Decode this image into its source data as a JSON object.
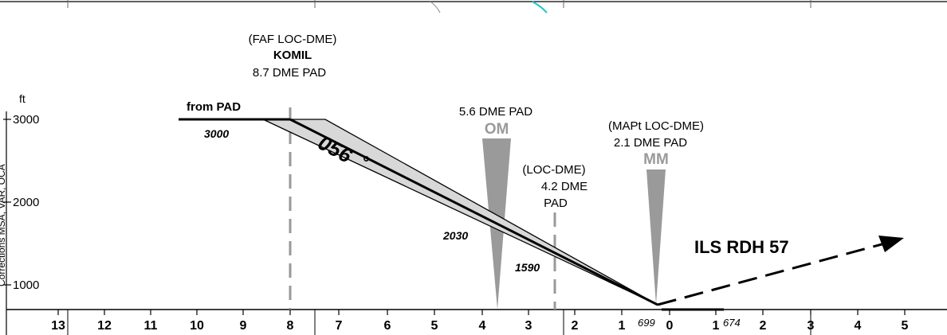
{
  "profile": {
    "unit_label": "ft",
    "altitude_scale": [
      "3000",
      "2000",
      "1000"
    ],
    "side_label": "Corrections MSA, VAR, OCA",
    "distance_scale": [
      "13",
      "12",
      "11",
      "10",
      "9",
      "8",
      "7",
      "6",
      "5",
      "4",
      "3",
      "2",
      "1",
      "0",
      "1",
      "2",
      "3",
      "4",
      "5"
    ],
    "from_pad": {
      "label": "from PAD",
      "altitude": "3000"
    },
    "faf": {
      "type": "(FAF LOC-DME)",
      "name": "KOMIL",
      "dme": "8.7 DME PAD"
    },
    "course": "056",
    "degree_symbol": "°",
    "om": {
      "dme": "5.6 DME PAD",
      "label": "OM"
    },
    "loc_dme_fix": {
      "type": "(LOC-DME)",
      "line1": "4.2 DME",
      "line2": "PAD"
    },
    "mapt": {
      "type": "(MAPt LOC-DME)",
      "dme": "2.1 DME PAD",
      "label": "MM"
    },
    "altitudes": {
      "om_alt": "2030",
      "fix_alt": "1590",
      "threshold_alt": "699",
      "end_alt": "674"
    },
    "ils_rdh": "ILS RDH 57"
  }
}
